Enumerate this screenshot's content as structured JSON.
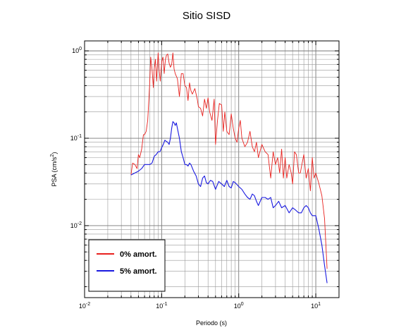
{
  "chart_data": {
    "type": "line",
    "title": "Sitio SISD",
    "xlabel": "Periodo (s)",
    "ylabel_main": "PSA (cm/s",
    "ylabel_sup": "2",
    "ylabel_end": ")",
    "xscale": "log",
    "yscale": "log",
    "xlim": [
      0.01,
      20
    ],
    "ylim": [
      0.0015,
      1.3
    ],
    "grid": true,
    "legend_position": "bottom-left",
    "x_ticks": [
      {
        "base": "10",
        "exp": "-2",
        "value": 0.01
      },
      {
        "base": "10",
        "exp": "-1",
        "value": 0.1
      },
      {
        "base": "10",
        "exp": "0",
        "value": 1
      },
      {
        "base": "10",
        "exp": "1",
        "value": 10
      }
    ],
    "y_ticks": [
      {
        "base": "10",
        "exp": "-2",
        "value": 0.01
      },
      {
        "base": "10",
        "exp": "-1",
        "value": 0.1
      },
      {
        "base": "10",
        "exp": "0",
        "value": 1
      }
    ],
    "series": [
      {
        "name": "0% amort.",
        "color": "#e8211e",
        "x": [
          0.04,
          0.042,
          0.045,
          0.048,
          0.05,
          0.052,
          0.055,
          0.058,
          0.06,
          0.063,
          0.066,
          0.07,
          0.072,
          0.075,
          0.078,
          0.08,
          0.083,
          0.086,
          0.09,
          0.093,
          0.096,
          0.1,
          0.104,
          0.108,
          0.112,
          0.116,
          0.12,
          0.125,
          0.13,
          0.135,
          0.14,
          0.145,
          0.15,
          0.16,
          0.17,
          0.18,
          0.19,
          0.2,
          0.21,
          0.22,
          0.23,
          0.24,
          0.25,
          0.27,
          0.29,
          0.3,
          0.32,
          0.34,
          0.36,
          0.38,
          0.4,
          0.42,
          0.45,
          0.48,
          0.5,
          0.53,
          0.56,
          0.6,
          0.63,
          0.66,
          0.7,
          0.75,
          0.8,
          0.85,
          0.9,
          0.95,
          1.0,
          1.05,
          1.1,
          1.2,
          1.3,
          1.4,
          1.5,
          1.6,
          1.7,
          1.8,
          2.0,
          2.2,
          2.4,
          2.6,
          2.8,
          3.0,
          3.2,
          3.4,
          3.6,
          3.8,
          4.0,
          4.2,
          4.5,
          4.8,
          5.0,
          5.3,
          5.6,
          6.0,
          6.3,
          6.6,
          7.0,
          7.5,
          8.0,
          8.5,
          9.0,
          9.5,
          10.0,
          11.0,
          12.0,
          13.0,
          14.0
        ],
        "y": [
          0.038,
          0.052,
          0.05,
          0.045,
          0.065,
          0.06,
          0.075,
          0.11,
          0.11,
          0.12,
          0.16,
          0.42,
          0.85,
          0.62,
          0.38,
          0.62,
          0.8,
          0.45,
          0.95,
          0.6,
          0.45,
          0.75,
          0.85,
          0.55,
          0.8,
          0.9,
          0.92,
          0.72,
          0.65,
          0.7,
          0.95,
          0.62,
          0.55,
          0.48,
          0.3,
          0.55,
          0.55,
          0.4,
          0.38,
          0.27,
          0.43,
          0.35,
          0.32,
          0.37,
          0.28,
          0.23,
          0.22,
          0.18,
          0.28,
          0.22,
          0.29,
          0.2,
          0.16,
          0.28,
          0.085,
          0.16,
          0.25,
          0.24,
          0.12,
          0.2,
          0.12,
          0.11,
          0.19,
          0.13,
          0.1,
          0.09,
          0.13,
          0.16,
          0.1,
          0.08,
          0.09,
          0.12,
          0.08,
          0.07,
          0.09,
          0.06,
          0.085,
          0.07,
          0.065,
          0.035,
          0.07,
          0.05,
          0.06,
          0.04,
          0.075,
          0.035,
          0.06,
          0.035,
          0.05,
          0.04,
          0.03,
          0.07,
          0.065,
          0.04,
          0.04,
          0.05,
          0.065,
          0.035,
          0.045,
          0.025,
          0.06,
          0.035,
          0.04,
          0.03,
          0.022,
          0.012,
          0.0032
        ]
      },
      {
        "name": "5% amort.",
        "color": "#1a1ae0",
        "x": [
          0.04,
          0.045,
          0.05,
          0.055,
          0.06,
          0.065,
          0.07,
          0.075,
          0.08,
          0.085,
          0.09,
          0.095,
          0.1,
          0.105,
          0.11,
          0.115,
          0.12,
          0.125,
          0.13,
          0.135,
          0.14,
          0.145,
          0.15,
          0.155,
          0.16,
          0.17,
          0.18,
          0.19,
          0.2,
          0.21,
          0.22,
          0.23,
          0.24,
          0.26,
          0.28,
          0.3,
          0.32,
          0.34,
          0.36,
          0.38,
          0.4,
          0.43,
          0.46,
          0.5,
          0.55,
          0.6,
          0.65,
          0.7,
          0.75,
          0.8,
          0.85,
          0.9,
          1.0,
          1.1,
          1.2,
          1.3,
          1.4,
          1.5,
          1.6,
          1.7,
          1.8,
          2.0,
          2.2,
          2.4,
          2.6,
          2.8,
          3.0,
          3.3,
          3.6,
          4.0,
          4.5,
          5.0,
          5.5,
          6.0,
          6.5,
          7.0,
          7.5,
          8.0,
          8.5,
          9.0,
          10.0,
          11.0,
          12.0,
          13.0,
          14.0
        ],
        "y": [
          0.038,
          0.04,
          0.042,
          0.045,
          0.05,
          0.05,
          0.05,
          0.052,
          0.062,
          0.065,
          0.07,
          0.07,
          0.078,
          0.085,
          0.095,
          0.092,
          0.09,
          0.085,
          0.1,
          0.13,
          0.155,
          0.15,
          0.14,
          0.15,
          0.13,
          0.1,
          0.07,
          0.06,
          0.05,
          0.05,
          0.048,
          0.052,
          0.05,
          0.042,
          0.037,
          0.03,
          0.028,
          0.035,
          0.037,
          0.031,
          0.03,
          0.033,
          0.032,
          0.026,
          0.032,
          0.03,
          0.028,
          0.033,
          0.028,
          0.027,
          0.032,
          0.031,
          0.028,
          0.026,
          0.023,
          0.021,
          0.02,
          0.023,
          0.022,
          0.019,
          0.017,
          0.021,
          0.021,
          0.02,
          0.021,
          0.016,
          0.017,
          0.019,
          0.016,
          0.017,
          0.014,
          0.016,
          0.015,
          0.014,
          0.014,
          0.016,
          0.017,
          0.016,
          0.014,
          0.013,
          0.013,
          0.009,
          0.006,
          0.0035,
          0.0022
        ]
      }
    ]
  }
}
